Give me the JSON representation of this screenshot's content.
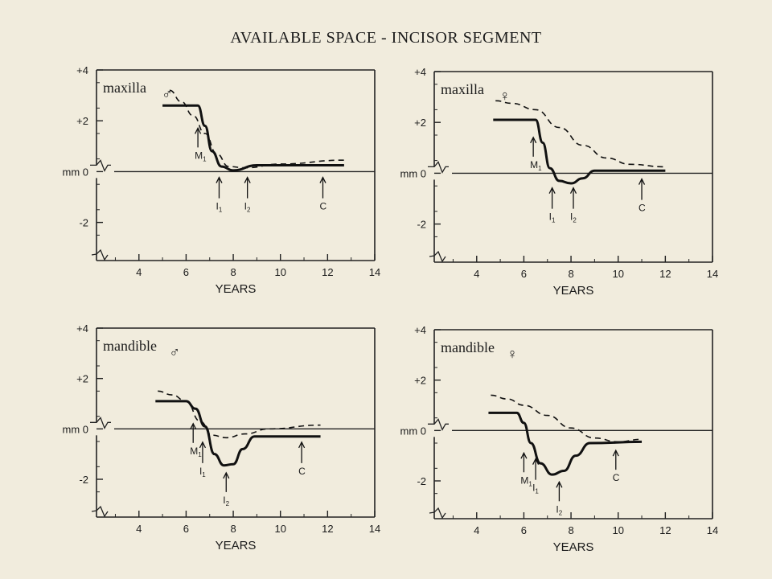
{
  "title": "AVAILABLE SPACE - INCISOR SEGMENT",
  "chart_data": [
    {
      "type": "line",
      "region": "maxilla",
      "sex": "male",
      "symbol": "♂",
      "xlabel": "YEARS",
      "ylabel": "mm",
      "xlim": [
        2.2,
        14
      ],
      "ylim": [
        -3.5,
        4
      ],
      "x_ticks": [
        4,
        6,
        8,
        10,
        12,
        14
      ],
      "y_ticks": [
        {
          "v": 4,
          "label": "+4"
        },
        {
          "v": 2,
          "label": "+2"
        },
        {
          "v": 0,
          "label": "mm 0"
        },
        {
          "v": -2,
          "label": "-2"
        }
      ],
      "series": [
        {
          "style": "solid",
          "points": [
            [
              5,
              2.6
            ],
            [
              6.5,
              2.6
            ],
            [
              6.8,
              1.8
            ],
            [
              7.1,
              0.8
            ],
            [
              7.5,
              0.2
            ],
            [
              8,
              0.05
            ],
            [
              9,
              0.25
            ],
            [
              12.7,
              0.25
            ]
          ]
        },
        {
          "style": "dashed",
          "points": [
            [
              5.3,
              3.2
            ],
            [
              5.8,
              2.75
            ],
            [
              6.3,
              2.2
            ],
            [
              6.8,
              1.5
            ],
            [
              7.3,
              0.7
            ],
            [
              7.8,
              0.2
            ],
            [
              8.5,
              0.15
            ],
            [
              10,
              0.3
            ],
            [
              12.7,
              0.45
            ]
          ]
        }
      ],
      "events": [
        {
          "label": "M",
          "sub": "1",
          "x": 6.5,
          "dir": "up",
          "y": 1.9
        },
        {
          "label": "I",
          "sub": "1",
          "x": 7.4,
          "dir": "down",
          "y": -0.1
        },
        {
          "label": "I",
          "sub": "2",
          "x": 8.6,
          "dir": "down",
          "y": -0.1
        },
        {
          "label": "C",
          "x": 11.8,
          "dir": "down",
          "y": -0.1
        }
      ]
    },
    {
      "type": "line",
      "region": "maxilla",
      "sex": "female",
      "symbol": "♀",
      "xlabel": "YEARS",
      "ylabel": "mm",
      "xlim": [
        2.2,
        14
      ],
      "ylim": [
        -3.5,
        4
      ],
      "x_ticks": [
        4,
        6,
        8,
        10,
        12,
        14
      ],
      "y_ticks": [
        {
          "v": 4,
          "label": "+4"
        },
        {
          "v": 2,
          "label": "+2"
        },
        {
          "v": 0,
          "label": "mm 0"
        },
        {
          "v": -2,
          "label": "-2"
        }
      ],
      "series": [
        {
          "style": "solid",
          "points": [
            [
              4.7,
              2.1
            ],
            [
              6.5,
              2.1
            ],
            [
              6.8,
              1.2
            ],
            [
              7.1,
              0.2
            ],
            [
              7.5,
              -0.3
            ],
            [
              8,
              -0.4
            ],
            [
              8.5,
              -0.2
            ],
            [
              9,
              0.1
            ],
            [
              12,
              0.1
            ]
          ]
        },
        {
          "style": "dashed",
          "points": [
            [
              4.8,
              2.85
            ],
            [
              5.5,
              2.75
            ],
            [
              6.5,
              2.5
            ],
            [
              7.5,
              1.8
            ],
            [
              8.5,
              1.1
            ],
            [
              9.5,
              0.6
            ],
            [
              10.5,
              0.35
            ],
            [
              12,
              0.25
            ]
          ]
        }
      ],
      "events": [
        {
          "label": "M",
          "sub": "1",
          "x": 6.4,
          "dir": "up",
          "y": 1.6
        },
        {
          "label": "I",
          "sub": "1",
          "x": 7.2,
          "dir": "down",
          "y": -0.45
        },
        {
          "label": "I",
          "sub": "2",
          "x": 8.1,
          "dir": "down",
          "y": -0.45
        },
        {
          "label": "C",
          "x": 11.0,
          "dir": "down",
          "y": -0.1
        }
      ]
    },
    {
      "type": "line",
      "region": "mandible",
      "sex": "male",
      "symbol": "♂",
      "xlabel": "YEARS",
      "ylabel": "mm",
      "xlim": [
        2.2,
        14
      ],
      "ylim": [
        -3.5,
        4
      ],
      "x_ticks": [
        4,
        6,
        8,
        10,
        12,
        14
      ],
      "y_ticks": [
        {
          "v": 4,
          "label": "+4"
        },
        {
          "v": 2,
          "label": "+2"
        },
        {
          "v": 0,
          "label": "mm 0"
        },
        {
          "v": -2,
          "label": "-2"
        }
      ],
      "series": [
        {
          "style": "solid",
          "points": [
            [
              4.7,
              1.1
            ],
            [
              6.0,
              1.1
            ],
            [
              6.4,
              0.8
            ],
            [
              6.8,
              0.1
            ],
            [
              7.2,
              -1.0
            ],
            [
              7.6,
              -1.45
            ],
            [
              8.0,
              -1.4
            ],
            [
              8.4,
              -0.8
            ],
            [
              8.9,
              -0.3
            ],
            [
              11.7,
              -0.3
            ]
          ]
        },
        {
          "style": "dashed",
          "points": [
            [
              4.8,
              1.5
            ],
            [
              5.4,
              1.35
            ],
            [
              6.0,
              1.1
            ],
            [
              6.6,
              0.3
            ],
            [
              7.1,
              -0.25
            ],
            [
              7.7,
              -0.35
            ],
            [
              8.5,
              -0.2
            ],
            [
              9.5,
              0.0
            ],
            [
              11.7,
              0.15
            ]
          ]
        }
      ],
      "events": [
        {
          "label": "M",
          "sub": "1",
          "x": 6.3,
          "dir": "up",
          "y": 0.4
        },
        {
          "label": "I",
          "sub": "1",
          "x": 6.7,
          "dir": "down",
          "y": -0.4
        },
        {
          "label": "I",
          "sub": "2",
          "x": 7.7,
          "dir": "up",
          "y": -1.55
        },
        {
          "label": "C",
          "x": 10.9,
          "dir": "down",
          "y": -0.4
        }
      ]
    },
    {
      "type": "line",
      "region": "mandible",
      "sex": "female",
      "symbol": "♀",
      "xlabel": "YEARS",
      "ylabel": "mm",
      "xlim": [
        2.2,
        14
      ],
      "ylim": [
        -3.5,
        4
      ],
      "x_ticks": [
        4,
        6,
        8,
        10,
        12,
        14
      ],
      "y_ticks": [
        {
          "v": 4,
          "label": "+4"
        },
        {
          "v": 2,
          "label": "+2"
        },
        {
          "v": 0,
          "label": "mm 0"
        },
        {
          "v": -2,
          "label": "-2"
        }
      ],
      "series": [
        {
          "style": "solid",
          "points": [
            [
              4.5,
              0.7
            ],
            [
              5.7,
              0.7
            ],
            [
              6.0,
              0.3
            ],
            [
              6.3,
              -0.5
            ],
            [
              6.7,
              -1.3
            ],
            [
              7.2,
              -1.75
            ],
            [
              7.7,
              -1.6
            ],
            [
              8.2,
              -1.0
            ],
            [
              8.8,
              -0.5
            ],
            [
              11,
              -0.45
            ]
          ]
        },
        {
          "style": "dashed",
          "points": [
            [
              4.6,
              1.4
            ],
            [
              5.3,
              1.25
            ],
            [
              6.0,
              1.0
            ],
            [
              7.0,
              0.6
            ],
            [
              8.0,
              0.1
            ],
            [
              9.0,
              -0.3
            ],
            [
              10.0,
              -0.45
            ],
            [
              11,
              -0.35
            ]
          ]
        }
      ],
      "events": [
        {
          "label": "M",
          "sub": "1",
          "x": 6.0,
          "dir": "up",
          "y": -0.7
        },
        {
          "label": "I",
          "sub": "1",
          "x": 6.5,
          "dir": "down",
          "y": -1.0
        },
        {
          "label": "I",
          "sub": "2",
          "x": 7.5,
          "dir": "up",
          "y": -1.85
        },
        {
          "label": "C",
          "x": 9.9,
          "dir": "up",
          "y": -0.6
        }
      ]
    }
  ]
}
